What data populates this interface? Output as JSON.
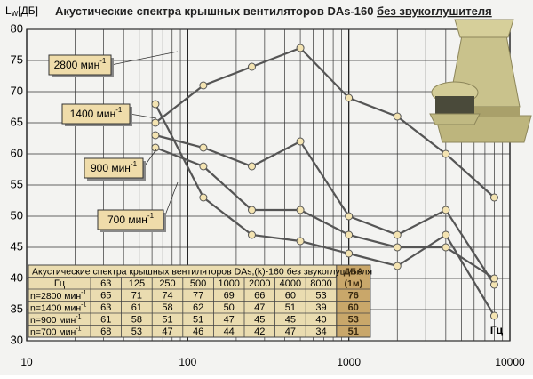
{
  "chart_data": {
    "type": "line",
    "title": "Акустические спектра крышных вентиляторов DAs-160",
    "title_underlined": "без звукоглушителя",
    "y_label": "L",
    "y_label_sub": "W",
    "y_label_unit": "[ДБ]",
    "x_label": "Гц",
    "speed_sup": "-1",
    "x": [
      63,
      125,
      250,
      500,
      1000,
      2000,
      4000,
      8000
    ],
    "series": [
      {
        "name": "2800 мин",
        "color": "#555555",
        "values": [
          65,
          71,
          74,
          77,
          69,
          66,
          60,
          53
        ]
      },
      {
        "name": "1400 мин",
        "color": "#555555",
        "values": [
          63,
          61,
          58,
          62,
          50,
          47,
          51,
          39
        ]
      },
      {
        "name": "900 мин",
        "color": "#555555",
        "values": [
          61,
          58,
          51,
          51,
          47,
          45,
          45,
          40
        ]
      },
      {
        "name": "700 мин",
        "color": "#555555",
        "values": [
          68,
          53,
          47,
          46,
          44,
          42,
          47,
          34
        ]
      }
    ],
    "xlim": [
      10,
      10000
    ],
    "xticks": [
      10,
      100,
      1000,
      10000
    ],
    "log_x": true,
    "ylim": [
      30,
      80
    ],
    "yticks": [
      30,
      35,
      40,
      45,
      50,
      55,
      60,
      65,
      70,
      75,
      80
    ],
    "grid": true
  },
  "table": {
    "title": "Акустические спектра крышных вентиляторов DAs,(k)-160 без звукоглушителя",
    "freq_header": "Гц",
    "row_prefix": "n=",
    "dba_header": "ДБА",
    "dba_header_2": "(1м)",
    "dba": [
      76,
      60,
      53,
      51
    ]
  }
}
